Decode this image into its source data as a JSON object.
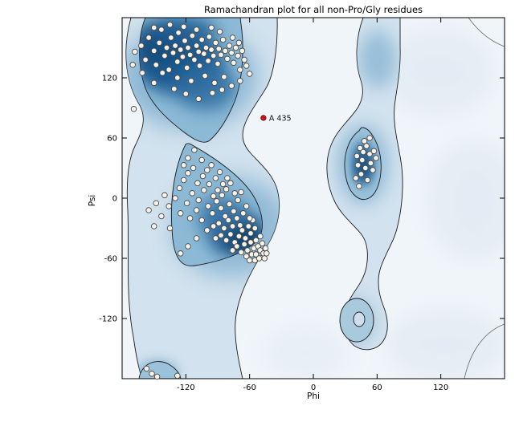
{
  "chart_data": {
    "type": "scatter",
    "title": "Ramachandran plot for all non-Pro/Gly residues",
    "xlabel": "Phi",
    "ylabel": "Psi",
    "xlim": [
      -180,
      180
    ],
    "ylim": [
      -180,
      180
    ],
    "grid": false,
    "legend": "none",
    "background": "blue kernel-density favored/allowed regions with black contour lines",
    "colors": {
      "density_core": "#1d5c92",
      "density_mid": "#8cbad6",
      "density_light": "#d2e2ee",
      "plot_background": "#f0f5f9",
      "marker_fill": "#f7f3ea",
      "marker_edge": "#4a4a4a",
      "highlight": "#cc1a1a"
    },
    "xticks": [
      {
        "value": -120,
        "label": "-120"
      },
      {
        "value": -60,
        "label": "-60"
      },
      {
        "value": 0,
        "label": "0"
      },
      {
        "value": 60,
        "label": "60"
      },
      {
        "value": 120,
        "label": "120"
      }
    ],
    "yticks": [
      {
        "value": -120,
        "label": "-120"
      },
      {
        "value": -60,
        "label": "-60"
      },
      {
        "value": 0,
        "label": "0"
      },
      {
        "value": 60,
        "label": "60"
      },
      {
        "value": 120,
        "label": "120"
      }
    ],
    "highlight": {
      "label": "A 435",
      "phi": -47,
      "psi": 80,
      "color": "#cc1a1a"
    },
    "points": [
      [
        -168,
        146
      ],
      [
        -162,
        152
      ],
      [
        -158,
        138
      ],
      [
        -155,
        160
      ],
      [
        -150,
        147
      ],
      [
        -148,
        133
      ],
      [
        -145,
        155
      ],
      [
        -143,
        168
      ],
      [
        -140,
        142
      ],
      [
        -138,
        150
      ],
      [
        -136,
        128
      ],
      [
        -134,
        160
      ],
      [
        -132,
        145
      ],
      [
        -130,
        152
      ],
      [
        -128,
        136
      ],
      [
        -127,
        165
      ],
      [
        -125,
        148
      ],
      [
        -123,
        141
      ],
      [
        -121,
        157
      ],
      [
        -119,
        130
      ],
      [
        -118,
        150
      ],
      [
        -116,
        143
      ],
      [
        -114,
        162
      ],
      [
        -112,
        138
      ],
      [
        -110,
        152
      ],
      [
        -108,
        146
      ],
      [
        -107,
        132
      ],
      [
        -105,
        158
      ],
      [
        -103,
        144
      ],
      [
        -101,
        150
      ],
      [
        -99,
        137
      ],
      [
        -98,
        161
      ],
      [
        -96,
        148
      ],
      [
        -94,
        142
      ],
      [
        -92,
        155
      ],
      [
        -90,
        134
      ],
      [
        -89,
        149
      ],
      [
        -87,
        143
      ],
      [
        -85,
        158
      ],
      [
        -83,
        147
      ],
      [
        -81,
        139
      ],
      [
        -79,
        152
      ],
      [
        -77,
        145
      ],
      [
        -75,
        135
      ],
      [
        -73,
        150
      ],
      [
        -71,
        142
      ],
      [
        -69,
        128
      ],
      [
        -67,
        147
      ],
      [
        -65,
        138
      ],
      [
        -63,
        132
      ],
      [
        -96,
        170
      ],
      [
        -110,
        168
      ],
      [
        -122,
        171
      ],
      [
        -135,
        173
      ],
      [
        -150,
        170
      ],
      [
        -88,
        166
      ],
      [
        -76,
        160
      ],
      [
        -70,
        155
      ],
      [
        -142,
        125
      ],
      [
        -128,
        120
      ],
      [
        -115,
        117
      ],
      [
        -102,
        122
      ],
      [
        -93,
        115
      ],
      [
        -84,
        121
      ],
      [
        -150,
        115
      ],
      [
        -161,
        125
      ],
      [
        -170,
        133
      ],
      [
        -108,
        99
      ],
      [
        -120,
        104
      ],
      [
        -131,
        109
      ],
      [
        -95,
        105
      ],
      [
        -86,
        108
      ],
      [
        -77,
        112
      ],
      [
        -69,
        117
      ],
      [
        -60,
        124
      ],
      [
        -169,
        89
      ],
      [
        -155,
        -12
      ],
      [
        -148,
        -5
      ],
      [
        -140,
        3
      ],
      [
        -150,
        -28
      ],
      [
        -143,
        -18
      ],
      [
        -136,
        -8
      ],
      [
        -130,
        0
      ],
      [
        -126,
        10
      ],
      [
        -122,
        18
      ],
      [
        -118,
        25
      ],
      [
        -113,
        30
      ],
      [
        -125,
        -15
      ],
      [
        -119,
        -5
      ],
      [
        -114,
        5
      ],
      [
        -109,
        15
      ],
      [
        -104,
        22
      ],
      [
        -100,
        28
      ],
      [
        -96,
        33
      ],
      [
        -92,
        20
      ],
      [
        -88,
        26
      ],
      [
        -108,
        -2
      ],
      [
        -103,
        8
      ],
      [
        -98,
        14
      ],
      [
        -94,
        2
      ],
      [
        -90,
        8
      ],
      [
        -85,
        14
      ],
      [
        -81,
        20
      ],
      [
        -116,
        -20
      ],
      [
        -110,
        -12
      ],
      [
        -105,
        -22
      ],
      [
        -99,
        -8
      ],
      [
        -95,
        -15
      ],
      [
        -91,
        -3
      ],
      [
        -86,
        3
      ],
      [
        -82,
        9
      ],
      [
        -78,
        15
      ],
      [
        -74,
        5
      ],
      [
        -87,
        -10
      ],
      [
        -83,
        -18
      ],
      [
        -79,
        -6
      ],
      [
        -75,
        -13
      ],
      [
        -71,
        -2
      ],
      [
        -68,
        6
      ],
      [
        -100,
        -32
      ],
      [
        -94,
        -28
      ],
      [
        -89,
        -25
      ],
      [
        -84,
        -30
      ],
      [
        -80,
        -22
      ],
      [
        -76,
        -28
      ],
      [
        -72,
        -20
      ],
      [
        -69,
        -27
      ],
      [
        -66,
        -15
      ],
      [
        -63,
        -8
      ],
      [
        -92,
        -40
      ],
      [
        -87,
        -37
      ],
      [
        -82,
        -42
      ],
      [
        -78,
        -36
      ],
      [
        -74,
        -44
      ],
      [
        -70,
        -38
      ],
      [
        -67,
        -32
      ],
      [
        -64,
        -40
      ],
      [
        -61,
        -28
      ],
      [
        -59,
        -35
      ],
      [
        -57,
        -22
      ],
      [
        -76,
        -52
      ],
      [
        -72,
        -48
      ],
      [
        -68,
        -54
      ],
      [
        -65,
        -46
      ],
      [
        -62,
        -52
      ],
      [
        -59,
        -44
      ],
      [
        -56,
        -50
      ],
      [
        -54,
        -42
      ],
      [
        -52,
        -48
      ],
      [
        -63,
        -58
      ],
      [
        -58,
        -56
      ],
      [
        -54,
        -56
      ],
      [
        -50,
        -52
      ],
      [
        -48,
        -45
      ],
      [
        -60,
        -62
      ],
      [
        -55,
        -62
      ],
      [
        -51,
        -60
      ],
      [
        -47,
        -55
      ],
      [
        -45,
        -50
      ],
      [
        -110,
        -40
      ],
      [
        -118,
        -48
      ],
      [
        -125,
        -55
      ],
      [
        -135,
        -30
      ],
      [
        -60,
        -20
      ],
      [
        -55,
        -30
      ],
      [
        -50,
        -38
      ],
      [
        -46,
        -60
      ],
      [
        -44,
        -55
      ],
      [
        -118,
        40
      ],
      [
        -112,
        48
      ],
      [
        -122,
        33
      ],
      [
        -105,
        38
      ],
      [
        41,
        42
      ],
      [
        44,
        50
      ],
      [
        47,
        46
      ],
      [
        50,
        52
      ],
      [
        53,
        44
      ],
      [
        46,
        38
      ],
      [
        42,
        33
      ],
      [
        49,
        30
      ],
      [
        54,
        35
      ],
      [
        45,
        24
      ],
      [
        51,
        18
      ],
      [
        56,
        28
      ],
      [
        40,
        20
      ],
      [
        57,
        47
      ],
      [
        48,
        57
      ],
      [
        53,
        60
      ],
      [
        59,
        40
      ],
      [
        43,
        12
      ],
      [
        -152,
        -175
      ],
      [
        -147,
        -178
      ],
      [
        -157,
        -170
      ],
      [
        -128,
        -177
      ]
    ]
  }
}
